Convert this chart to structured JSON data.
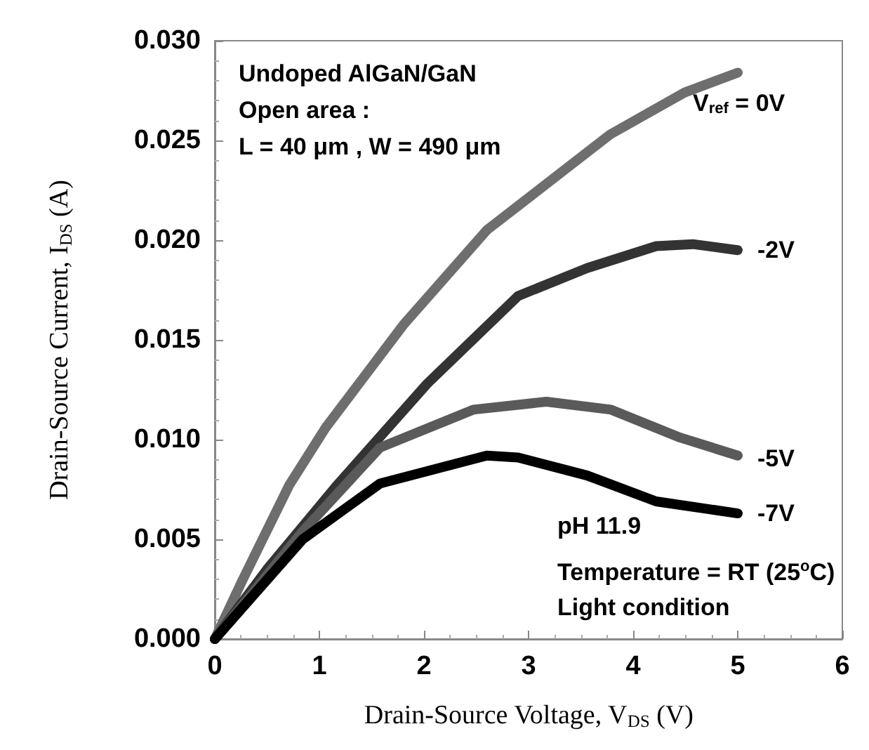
{
  "chart_data": {
    "type": "line",
    "xlabel": "Drain-Source Voltage, V$_{DS}$ (V)",
    "ylabel": "Drain-Source Current, I$_{DS}$ (A)",
    "xlim": [
      0,
      6
    ],
    "xticks": [
      0,
      1,
      2,
      3,
      4,
      5,
      6
    ],
    "ylim": [
      0,
      0.03
    ],
    "yticks": [
      {
        "value": 0,
        "label": "0.000"
      },
      {
        "value": 0.005,
        "label": "0.005"
      },
      {
        "value": 0.01,
        "label": "0.010"
      },
      {
        "value": 0.015,
        "label": "0.015"
      },
      {
        "value": 0.02,
        "label": "0.020"
      },
      {
        "value": 0.025,
        "label": "0.025"
      },
      {
        "value": 0.03,
        "label": "0.030"
      }
    ],
    "grid": false,
    "legend": false,
    "marker": "none",
    "line_style": "solid",
    "annotations": [
      "Undoped AlGaN/GaN",
      "Open area :",
      "L = 40 μm , W = 490 μm",
      "pH 11.9",
      "Temperature = RT (25$^{o}$C)",
      "Light condition"
    ],
    "series": [
      {
        "name": "V$_{ref}$ = 0V",
        "color": "#6e6e6e",
        "x": [
          0,
          0.26,
          0.71,
          1.06,
          1.81,
          2.6,
          3.78,
          4.49,
          5.0
        ],
        "values": [
          0,
          0.0029,
          0.0077,
          0.0106,
          0.0158,
          0.0205,
          0.0253,
          0.0274,
          0.0284
        ]
      },
      {
        "name": "-2V",
        "color": "#333333",
        "x": [
          0,
          0.5,
          1.15,
          2.03,
          2.9,
          3.56,
          4.22,
          4.57,
          5.0
        ],
        "values": [
          0,
          0.0035,
          0.0076,
          0.0128,
          0.0172,
          0.0186,
          0.0197,
          0.0198,
          0.0195
        ]
      },
      {
        "name": "-5V",
        "color": "#5a5a5a",
        "x": [
          0,
          0.84,
          1.58,
          2.47,
          3.17,
          3.79,
          4.45,
          5.0
        ],
        "values": [
          0,
          0.0054,
          0.0096,
          0.0115,
          0.0119,
          0.0115,
          0.0101,
          0.0092
        ]
      },
      {
        "name": "-7V",
        "color": "#000000",
        "x": [
          0,
          0.84,
          1.58,
          2.6,
          2.9,
          3.56,
          4.22,
          5.0
        ],
        "values": [
          0,
          0.005,
          0.0078,
          0.0092,
          0.0091,
          0.0082,
          0.0069,
          0.0063
        ]
      }
    ]
  }
}
